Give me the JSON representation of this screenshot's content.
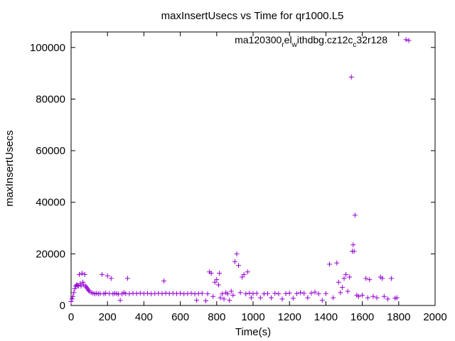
{
  "chart_data": {
    "type": "scatter",
    "title": "maxInsertUsecs vs Time for qr1000.L5",
    "xlabel": "Time(s)",
    "ylabel": "maxInsertUsecs",
    "xlim": [
      0,
      2000
    ],
    "ylim": [
      0,
      106000
    ],
    "xticks": [
      0,
      200,
      400,
      600,
      800,
      1000,
      1200,
      1400,
      1600,
      1800,
      2000
    ],
    "yticks": [
      0,
      20000,
      40000,
      60000,
      80000,
      100000
    ],
    "grid": false,
    "legend_position": "top-right",
    "marker": "+",
    "series": [
      {
        "name": "ma120300_rel_withdbg.cz12c_c32r128",
        "color": "#9400d3",
        "points": [
          [
            0,
            1500
          ],
          [
            5,
            2500
          ],
          [
            10,
            3500
          ],
          [
            15,
            5000
          ],
          [
            20,
            6500
          ],
          [
            25,
            7500
          ],
          [
            30,
            8000
          ],
          [
            35,
            7800
          ],
          [
            40,
            7500
          ],
          [
            45,
            12000
          ],
          [
            50,
            8500
          ],
          [
            55,
            7500
          ],
          [
            60,
            12500
          ],
          [
            65,
            9000
          ],
          [
            70,
            8000
          ],
          [
            75,
            12000
          ],
          [
            80,
            7500
          ],
          [
            85,
            7000
          ],
          [
            90,
            6500
          ],
          [
            95,
            6000
          ],
          [
            100,
            5500
          ],
          [
            110,
            5000
          ],
          [
            120,
            4800
          ],
          [
            130,
            4500
          ],
          [
            140,
            4700
          ],
          [
            150,
            4500
          ],
          [
            160,
            4600
          ],
          [
            170,
            12000
          ],
          [
            180,
            4500
          ],
          [
            190,
            4800
          ],
          [
            200,
            11500
          ],
          [
            210,
            4600
          ],
          [
            220,
            10500
          ],
          [
            230,
            4500
          ],
          [
            240,
            4700
          ],
          [
            250,
            4600
          ],
          [
            260,
            4400
          ],
          [
            270,
            2000
          ],
          [
            280,
            4500
          ],
          [
            290,
            5000
          ],
          [
            300,
            4600
          ],
          [
            310,
            10500
          ],
          [
            320,
            4500
          ],
          [
            340,
            4700
          ],
          [
            360,
            4600
          ],
          [
            380,
            4800
          ],
          [
            400,
            4600
          ],
          [
            420,
            4700
          ],
          [
            440,
            4500
          ],
          [
            460,
            4600
          ],
          [
            480,
            4700
          ],
          [
            500,
            4600
          ],
          [
            510,
            9500
          ],
          [
            520,
            4800
          ],
          [
            540,
            4600
          ],
          [
            560,
            4700
          ],
          [
            580,
            4600
          ],
          [
            600,
            4700
          ],
          [
            620,
            4500
          ],
          [
            640,
            4600
          ],
          [
            660,
            4700
          ],
          [
            680,
            4500
          ],
          [
            690,
            2000
          ],
          [
            700,
            4600
          ],
          [
            720,
            4700
          ],
          [
            740,
            1800
          ],
          [
            750,
            4500
          ],
          [
            760,
            13000
          ],
          [
            770,
            12500
          ],
          [
            780,
            3500
          ],
          [
            790,
            9000
          ],
          [
            800,
            10000
          ],
          [
            810,
            8000
          ],
          [
            815,
            12500
          ],
          [
            820,
            3000
          ],
          [
            830,
            4500
          ],
          [
            840,
            2500
          ],
          [
            850,
            5000
          ],
          [
            860,
            4500
          ],
          [
            870,
            2000
          ],
          [
            880,
            5500
          ],
          [
            890,
            4000
          ],
          [
            900,
            17000
          ],
          [
            910,
            20000
          ],
          [
            920,
            15500
          ],
          [
            930,
            5000
          ],
          [
            940,
            11000
          ],
          [
            950,
            12000
          ],
          [
            960,
            4500
          ],
          [
            970,
            13000
          ],
          [
            980,
            4800
          ],
          [
            990,
            3000
          ],
          [
            1000,
            4600
          ],
          [
            1020,
            4700
          ],
          [
            1040,
            3000
          ],
          [
            1060,
            4500
          ],
          [
            1080,
            4600
          ],
          [
            1100,
            3000
          ],
          [
            1120,
            4700
          ],
          [
            1140,
            4500
          ],
          [
            1160,
            2500
          ],
          [
            1180,
            4600
          ],
          [
            1200,
            4800
          ],
          [
            1220,
            2800
          ],
          [
            1240,
            4600
          ],
          [
            1260,
            5000
          ],
          [
            1280,
            4700
          ],
          [
            1300,
            3000
          ],
          [
            1320,
            4800
          ],
          [
            1340,
            5200
          ],
          [
            1360,
            4500
          ],
          [
            1380,
            2000
          ],
          [
            1400,
            4600
          ],
          [
            1420,
            16000
          ],
          [
            1440,
            3000
          ],
          [
            1460,
            16500
          ],
          [
            1470,
            9000
          ],
          [
            1480,
            5000
          ],
          [
            1490,
            7000
          ],
          [
            1500,
            10500
          ],
          [
            1510,
            12000
          ],
          [
            1520,
            5500
          ],
          [
            1530,
            11000
          ],
          [
            1540,
            88500
          ],
          [
            1545,
            21000
          ],
          [
            1550,
            23500
          ],
          [
            1555,
            21000
          ],
          [
            1560,
            35000
          ],
          [
            1570,
            4000
          ],
          [
            1580,
            3500
          ],
          [
            1600,
            4000
          ],
          [
            1620,
            10500
          ],
          [
            1630,
            3000
          ],
          [
            1640,
            10000
          ],
          [
            1660,
            3500
          ],
          [
            1680,
            3000
          ],
          [
            1700,
            11000
          ],
          [
            1710,
            10500
          ],
          [
            1720,
            3500
          ],
          [
            1740,
            2500
          ],
          [
            1760,
            10500
          ],
          [
            1780,
            2800
          ],
          [
            1790,
            3000
          ],
          [
            1840,
            103000
          ]
        ]
      }
    ]
  }
}
